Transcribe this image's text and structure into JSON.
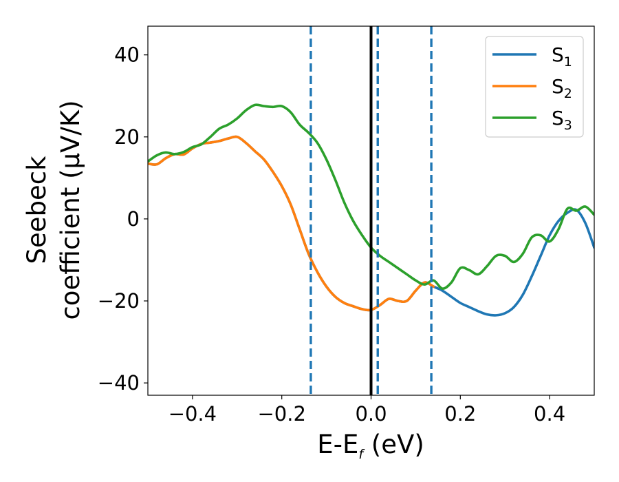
{
  "chart_data": {
    "type": "line",
    "title": "",
    "xlabel": {
      "main": "E-E",
      "sub": "f",
      "unit": " (eV)"
    },
    "ylabel": {
      "line1": "Seebeck",
      "line2": "coefficient  (μV/K)"
    },
    "xlim": [
      -0.5,
      0.5
    ],
    "ylim": [
      -43,
      47
    ],
    "xticks": [
      -0.4,
      -0.2,
      0.0,
      0.2,
      0.4
    ],
    "xtick_labels": [
      "−0.4",
      "−0.2",
      "0.0",
      "0.2",
      "0.4"
    ],
    "yticks": [
      -40,
      -20,
      0,
      20,
      40
    ],
    "ytick_labels": [
      "−40",
      "−20",
      "0",
      "20",
      "40"
    ],
    "grid": false,
    "legend_position": "top-right",
    "vertical_lines": [
      {
        "x": 0.0,
        "color": "#000000",
        "style": "solid"
      },
      {
        "x": -0.135,
        "color": "#1f77b4",
        "style": "dashed"
      },
      {
        "x": 0.015,
        "color": "#1f77b4",
        "style": "dashed"
      },
      {
        "x": 0.135,
        "color": "#1f77b4",
        "style": "dashed"
      }
    ],
    "series": [
      {
        "name": "S",
        "sub": "1",
        "color": "#1f77b4",
        "x": [
          -0.5,
          -0.48,
          -0.46,
          -0.44,
          -0.42,
          -0.4,
          -0.38,
          -0.36,
          -0.34,
          -0.32,
          -0.3,
          -0.28,
          -0.26,
          -0.24,
          -0.22,
          -0.2,
          -0.18,
          -0.16,
          -0.14,
          -0.12,
          -0.1,
          -0.08,
          -0.06,
          -0.04,
          -0.02,
          0.0,
          0.02,
          0.04,
          0.06,
          0.08,
          0.1,
          0.12,
          0.14,
          0.16,
          0.18,
          0.2,
          0.22,
          0.24,
          0.26,
          0.28,
          0.3,
          0.32,
          0.34,
          0.36,
          0.38,
          0.4,
          0.42,
          0.44,
          0.46,
          0.48,
          0.5
        ],
        "y": [
          13.5,
          13.3,
          14.8,
          15.8,
          15.7,
          17.2,
          18.3,
          18.6,
          19.0,
          19.6,
          20.0,
          18.5,
          16.5,
          14.5,
          11.5,
          8.0,
          3.5,
          -2.5,
          -8.5,
          -13.0,
          -16.5,
          -19.0,
          -20.5,
          -21.3,
          -22.0,
          -22.2,
          -21.0,
          -19.5,
          -20.0,
          -20.0,
          -17.5,
          -15.5,
          -16.5,
          -17.5,
          -19.0,
          -20.5,
          -21.5,
          -22.5,
          -23.3,
          -23.5,
          -23.0,
          -21.5,
          -18.5,
          -14.0,
          -9.0,
          -4.0,
          -0.5,
          1.5,
          2.2,
          -1.0,
          -7.0
        ]
      },
      {
        "name": "S",
        "sub": "2",
        "color": "#ff7f0e",
        "x": [
          -0.5,
          -0.48,
          -0.46,
          -0.44,
          -0.42,
          -0.4,
          -0.38,
          -0.36,
          -0.34,
          -0.32,
          -0.3,
          -0.28,
          -0.26,
          -0.24,
          -0.22,
          -0.2,
          -0.18,
          -0.16,
          -0.14,
          -0.12,
          -0.1,
          -0.08,
          -0.06,
          -0.04,
          -0.02,
          0.0,
          0.02,
          0.04,
          0.06,
          0.08,
          0.1,
          0.12,
          0.14
        ],
        "y": [
          13.5,
          13.3,
          14.8,
          15.8,
          15.7,
          17.2,
          18.3,
          18.6,
          19.0,
          19.6,
          20.0,
          18.5,
          16.5,
          14.5,
          11.5,
          8.0,
          3.5,
          -2.5,
          -8.5,
          -13.0,
          -16.5,
          -19.0,
          -20.5,
          -21.3,
          -22.0,
          -22.2,
          -21.0,
          -19.5,
          -20.0,
          -20.0,
          -17.5,
          -15.5,
          -16.5
        ]
      },
      {
        "name": "S",
        "sub": "3",
        "color": "#2ca02c",
        "x": [
          -0.5,
          -0.48,
          -0.46,
          -0.44,
          -0.42,
          -0.4,
          -0.38,
          -0.36,
          -0.34,
          -0.32,
          -0.3,
          -0.28,
          -0.26,
          -0.24,
          -0.22,
          -0.2,
          -0.18,
          -0.16,
          -0.14,
          -0.12,
          -0.1,
          -0.08,
          -0.06,
          -0.04,
          -0.02,
          0.0,
          0.02,
          0.04,
          0.06,
          0.08,
          0.1,
          0.12,
          0.14,
          0.16,
          0.18,
          0.2,
          0.22,
          0.24,
          0.26,
          0.28,
          0.3,
          0.32,
          0.34,
          0.36,
          0.38,
          0.4,
          0.42,
          0.44,
          0.46,
          0.48,
          0.5
        ],
        "y": [
          14.0,
          15.5,
          16.2,
          15.8,
          16.3,
          17.5,
          18.2,
          20.0,
          22.0,
          23.0,
          24.5,
          26.5,
          27.8,
          27.5,
          27.3,
          27.5,
          26.0,
          23.0,
          21.0,
          18.5,
          14.5,
          9.5,
          4.0,
          -0.5,
          -4.0,
          -7.0,
          -9.0,
          -10.5,
          -12.0,
          -13.5,
          -15.0,
          -16.0,
          -15.0,
          -17.0,
          -15.5,
          -12.0,
          -12.5,
          -13.5,
          -11.5,
          -9.0,
          -9.0,
          -10.5,
          -8.5,
          -4.5,
          -4.0,
          -5.5,
          -2.5,
          2.5,
          2.0,
          3.0,
          1.0
        ]
      }
    ]
  }
}
